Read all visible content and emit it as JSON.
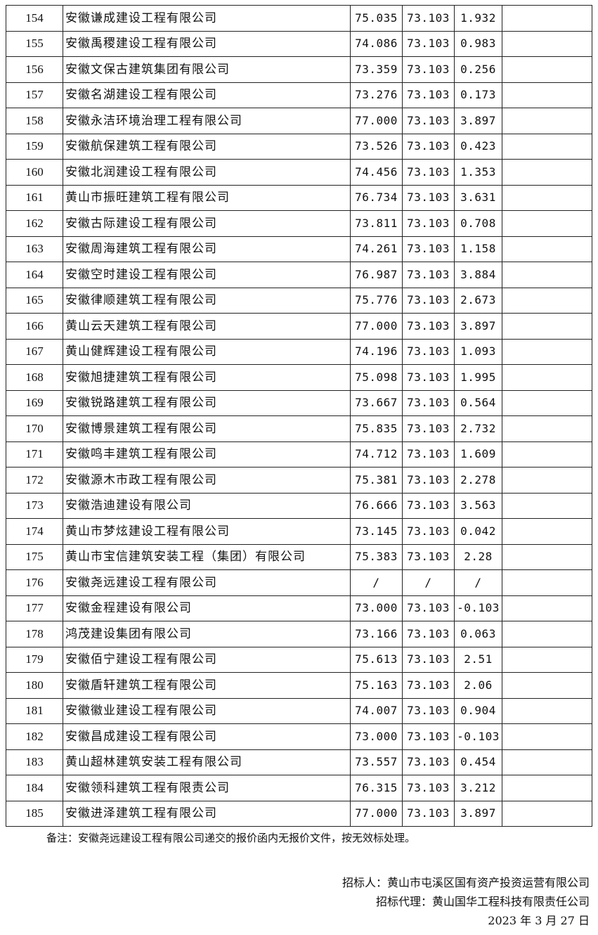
{
  "rows": [
    [
      "154",
      "安徽谦成建设工程有限公司",
      "75.035",
      "73.103",
      "1.932",
      ""
    ],
    [
      "155",
      "安徽禹稷建设工程有限公司",
      "74.086",
      "73.103",
      "0.983",
      ""
    ],
    [
      "156",
      "安徽文保古建筑集团有限公司",
      "73.359",
      "73.103",
      "0.256",
      ""
    ],
    [
      "157",
      "安徽名湖建设工程有限公司",
      "73.276",
      "73.103",
      "0.173",
      ""
    ],
    [
      "158",
      "安徽永洁环境治理工程有限公司",
      "77.000",
      "73.103",
      "3.897",
      ""
    ],
    [
      "159",
      "安徽航保建筑工程有限公司",
      "73.526",
      "73.103",
      "0.423",
      ""
    ],
    [
      "160",
      "安徽北润建设工程有限公司",
      "74.456",
      "73.103",
      "1.353",
      ""
    ],
    [
      "161",
      "黄山市振旺建筑工程有限公司",
      "76.734",
      "73.103",
      "3.631",
      ""
    ],
    [
      "162",
      "安徽古际建设工程有限公司",
      "73.811",
      "73.103",
      "0.708",
      ""
    ],
    [
      "163",
      "安徽周海建筑工程有限公司",
      "74.261",
      "73.103",
      "1.158",
      ""
    ],
    [
      "164",
      "安徽空时建设工程有限公司",
      "76.987",
      "73.103",
      "3.884",
      ""
    ],
    [
      "165",
      "安徽律顺建筑工程有限公司",
      "75.776",
      "73.103",
      "2.673",
      ""
    ],
    [
      "166",
      "黄山云天建筑工程有限公司",
      "77.000",
      "73.103",
      "3.897",
      ""
    ],
    [
      "167",
      "黄山健辉建设工程有限公司",
      "74.196",
      "73.103",
      "1.093",
      ""
    ],
    [
      "168",
      "安徽旭捷建筑工程有限公司",
      "75.098",
      "73.103",
      "1.995",
      ""
    ],
    [
      "169",
      "安徽锐路建筑工程有限公司",
      "73.667",
      "73.103",
      "0.564",
      ""
    ],
    [
      "170",
      "安徽博景建筑工程有限公司",
      "75.835",
      "73.103",
      "2.732",
      ""
    ],
    [
      "171",
      "安徽鸣丰建筑工程有限公司",
      "74.712",
      "73.103",
      "1.609",
      ""
    ],
    [
      "172",
      "安徽源木市政工程有限公司",
      "75.381",
      "73.103",
      "2.278",
      ""
    ],
    [
      "173",
      "安徽浩迪建设有限公司",
      "76.666",
      "73.103",
      "3.563",
      ""
    ],
    [
      "174",
      "黄山市梦炫建设工程有限公司",
      "73.145",
      "73.103",
      "0.042",
      ""
    ],
    [
      "175",
      "黄山市宝信建筑安装工程（集团）有限公司",
      "75.383",
      "73.103",
      "2.28",
      ""
    ],
    [
      "176",
      "安徽尧远建设工程有限公司",
      "/",
      "/",
      "/",
      ""
    ],
    [
      "177",
      "安徽金程建设有限公司",
      "73.000",
      "73.103",
      "-0.103",
      ""
    ],
    [
      "178",
      "鸿茂建设集团有限公司",
      "73.166",
      "73.103",
      "0.063",
      ""
    ],
    [
      "179",
      "安徽佰宁建设工程有限公司",
      "75.613",
      "73.103",
      "2.51",
      ""
    ],
    [
      "180",
      "安徽盾轩建筑工程有限公司",
      "75.163",
      "73.103",
      "2.06",
      ""
    ],
    [
      "181",
      "安徽徽业建设工程有限公司",
      "74.007",
      "73.103",
      "0.904",
      ""
    ],
    [
      "182",
      "安徽昌成建设工程有限公司",
      "73.000",
      "73.103",
      "-0.103",
      ""
    ],
    [
      "183",
      "黄山超林建筑安装工程有限公司",
      "73.557",
      "73.103",
      "0.454",
      ""
    ],
    [
      "184",
      "安徽领科建筑工程有限责公司",
      "76.315",
      "73.103",
      "3.212",
      ""
    ],
    [
      "185",
      "安徽进泽建筑工程有限公司",
      "77.000",
      "73.103",
      "3.897",
      ""
    ]
  ],
  "note": "备注：安徽尧远建设工程有限公司递交的报价函内无报价文件，按无效标处理。",
  "tenderer": "招标人：黄山市屯溪区国有资产投资运营有限公司",
  "agent": "招标代理：黄山国华工程科技有限责任公司",
  "date": "2023 年 3 月 27 日"
}
